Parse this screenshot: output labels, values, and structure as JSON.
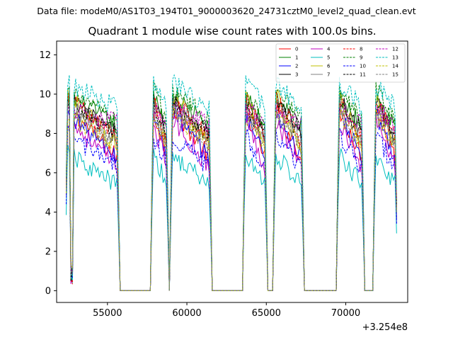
{
  "suptitle": "Data file: modeM0/AS1T03_194T01_9000003620_24731cztM0_level2_quad_clean.evt",
  "chart_data": {
    "type": "line",
    "title": "Quadrant 1 module wise count rates with 100.0s bins.",
    "xlabel": "",
    "ylabel": "",
    "x_offset_label": "+3.254e8",
    "xlim": [
      51800,
      73900
    ],
    "ylim": [
      -0.6,
      12.7
    ],
    "x_ticks": [
      55000,
      60000,
      65000,
      70000
    ],
    "x_tick_labels": [
      "55000",
      "60000",
      "65000",
      "70000"
    ],
    "y_ticks": [
      0,
      2,
      4,
      6,
      8,
      10,
      12
    ],
    "y_tick_labels": [
      "0",
      "2",
      "4",
      "6",
      "8",
      "10",
      "12"
    ],
    "legend_position": "top-right",
    "segments": [
      {
        "start": 52400,
        "end": 55700,
        "dip_start": 52600,
        "dip_end": 52900
      },
      {
        "start": 57800,
        "end": 58800
      },
      {
        "start": 59000,
        "end": 61500
      },
      {
        "start": 63600,
        "end": 65000
      },
      {
        "start": 65500,
        "end": 67300
      },
      {
        "start": 69500,
        "end": 71100
      },
      {
        "start": 71800,
        "end": 73200
      }
    ],
    "series": [
      {
        "name": "0",
        "color": "#ff0000",
        "dash": "solid",
        "start_rate": 9.4,
        "end_rate": 6.7
      },
      {
        "name": "1",
        "color": "#008000",
        "dash": "solid",
        "start_rate": 10.0,
        "end_rate": 8.3
      },
      {
        "name": "2",
        "color": "#0000ff",
        "dash": "solid",
        "start_rate": 9.2,
        "end_rate": 6.6
      },
      {
        "name": "3",
        "color": "#000000",
        "dash": "solid",
        "start_rate": 9.8,
        "end_rate": 7.8
      },
      {
        "name": "4",
        "color": "#bf00bf",
        "dash": "solid",
        "start_rate": 8.8,
        "end_rate": 6.2
      },
      {
        "name": "5",
        "color": "#00bfbf",
        "dash": "solid",
        "start_rate": 7.0,
        "end_rate": 5.3
      },
      {
        "name": "6",
        "color": "#bfbf00",
        "dash": "solid",
        "start_rate": 10.1,
        "end_rate": 7.2
      },
      {
        "name": "7",
        "color": "#808080",
        "dash": "solid",
        "start_rate": 9.6,
        "end_rate": 7.5
      },
      {
        "name": "8",
        "color": "#ff0000",
        "dash": "dashed",
        "start_rate": 9.9,
        "end_rate": 7.6
      },
      {
        "name": "9",
        "color": "#008000",
        "dash": "dashed",
        "start_rate": 10.4,
        "end_rate": 8.5
      },
      {
        "name": "10",
        "color": "#0000ff",
        "dash": "dashed",
        "start_rate": 8.0,
        "end_rate": 6.2
      },
      {
        "name": "11",
        "color": "#000000",
        "dash": "dashed",
        "start_rate": 9.5,
        "end_rate": 8.0
      },
      {
        "name": "12",
        "color": "#bf00bf",
        "dash": "dashed",
        "start_rate": 9.3,
        "end_rate": 8.5
      },
      {
        "name": "13",
        "color": "#00bfbf",
        "dash": "dashed",
        "start_rate": 10.6,
        "end_rate": 9.3
      },
      {
        "name": "14",
        "color": "#bfbf00",
        "dash": "dashed",
        "start_rate": 9.0,
        "end_rate": 7.4
      },
      {
        "name": "15",
        "color": "#808080",
        "dash": "dashed",
        "start_rate": 9.2,
        "end_rate": 7.3
      }
    ]
  }
}
